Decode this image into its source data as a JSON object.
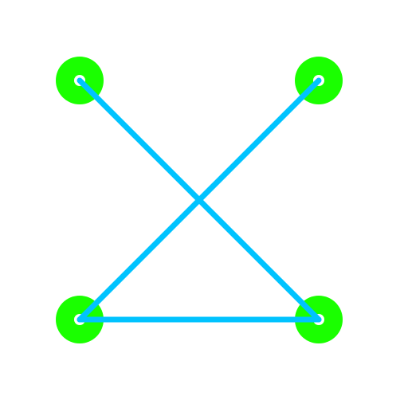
{
  "colors": {
    "background": "#ffffff",
    "node_ring": "#1aff00",
    "node_center": "#ffffff",
    "edge": "#00c3ff"
  },
  "nodes": [
    {
      "name": "top-left"
    },
    {
      "name": "top-right"
    },
    {
      "name": "bottom-left"
    },
    {
      "name": "bottom-right"
    }
  ],
  "edges": [
    {
      "from": "top-left",
      "to": "bottom-right"
    },
    {
      "from": "top-right",
      "to": "bottom-left"
    },
    {
      "from": "bottom-left",
      "to": "bottom-right"
    }
  ]
}
